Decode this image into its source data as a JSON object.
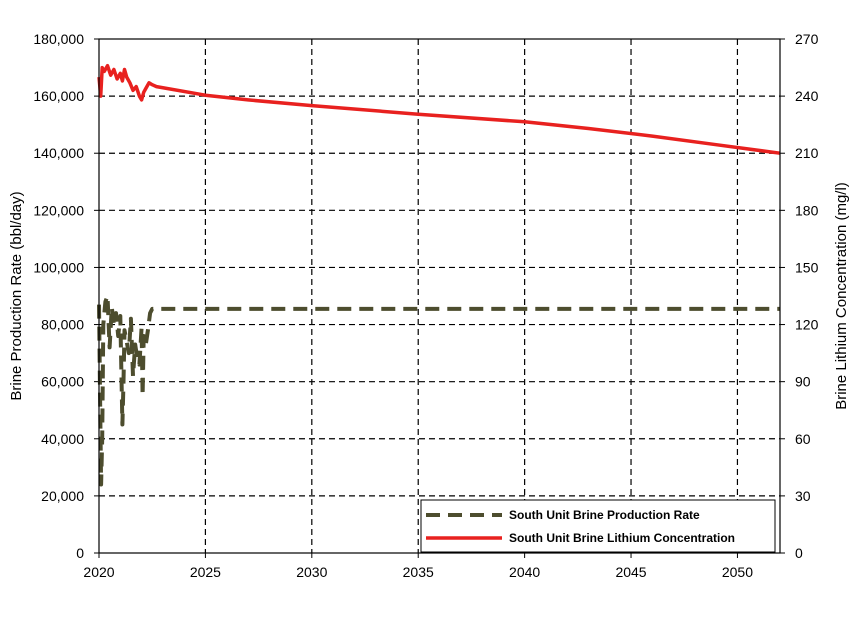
{
  "chart_data": {
    "type": "line",
    "title": "",
    "xlabel": "",
    "ylabel": "Brine Production Rate (bbl/day)",
    "y2label": "Brine Lithium Concentration (mg/l)",
    "xlim": [
      2020,
      2052
    ],
    "ylim": [
      0,
      180000
    ],
    "y2lim": [
      0,
      270
    ],
    "x_ticks": [
      2020,
      2025,
      2030,
      2035,
      2040,
      2045,
      2050
    ],
    "y_ticks": [
      "0",
      "20,000",
      "40,000",
      "60,000",
      "80,000",
      "100,000",
      "120,000",
      "140,000",
      "160,000",
      "180,000"
    ],
    "y2_ticks": [
      "0",
      "30",
      "60",
      "90",
      "120",
      "150",
      "180",
      "210",
      "240",
      "270"
    ],
    "grid": true,
    "legend_position": "bottom-right",
    "series": [
      {
        "name": "South Unit Brine Production Rate",
        "axis": "left",
        "color": "#4d4d2e",
        "style": "dashed",
        "x": [
          2020.0,
          2020.1,
          2020.15,
          2020.2,
          2020.3,
          2020.4,
          2020.5,
          2020.6,
          2020.7,
          2020.8,
          2020.9,
          2021.0,
          2021.1,
          2021.15,
          2021.2,
          2021.3,
          2021.4,
          2021.5,
          2021.6,
          2021.7,
          2021.8,
          2021.9,
          2022.0,
          2022.05,
          2022.1,
          2022.2,
          2022.3,
          2022.4,
          2022.5,
          2025,
          2030,
          2035,
          2040,
          2045,
          2050,
          2052
        ],
        "values": [
          87000,
          24000,
          40000,
          80000,
          88000,
          90000,
          72000,
          86000,
          80000,
          84000,
          76000,
          83000,
          45000,
          60000,
          78000,
          74000,
          70000,
          82000,
          62000,
          73000,
          68000,
          66000,
          79000,
          55000,
          76000,
          73000,
          78000,
          84000,
          85500,
          85500,
          85500,
          85500,
          85500,
          85500,
          85500,
          85500
        ]
      },
      {
        "name": "South Unit Brine Lithium Concentration",
        "axis": "right",
        "color": "#e8211f",
        "style": "solid",
        "x": [
          2020.0,
          2020.08,
          2020.15,
          2020.25,
          2020.4,
          2020.55,
          2020.7,
          2020.85,
          2021.0,
          2021.1,
          2021.2,
          2021.3,
          2021.45,
          2021.6,
          2021.75,
          2021.9,
          2022.0,
          2022.1,
          2022.2,
          2022.35,
          2022.5,
          2022.7,
          2025,
          2027,
          2030,
          2035,
          2040,
          2043,
          2046,
          2049,
          2052
        ],
        "values": [
          250,
          240,
          255,
          253,
          256,
          251,
          254,
          249,
          252,
          248,
          254,
          250,
          247,
          243,
          245,
          240,
          238,
          242,
          244,
          247,
          246,
          245,
          240.5,
          238,
          235,
          230.5,
          226.5,
          223,
          219,
          214.5,
          210
        ]
      }
    ]
  }
}
